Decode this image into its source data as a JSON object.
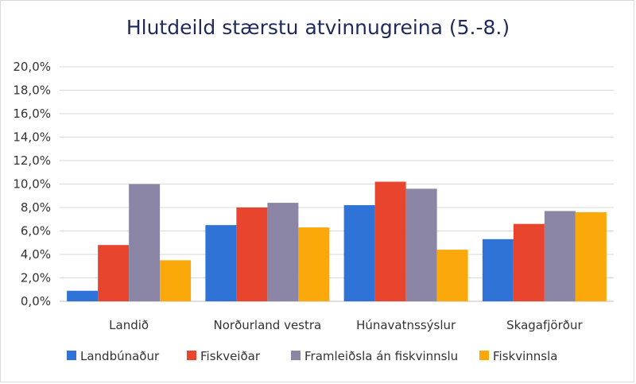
{
  "chart_data": {
    "type": "bar",
    "title": "Hlutdeild stærstu atvinnugreina (5.-8.)",
    "categories": [
      "Landið",
      "Norðurland vestra",
      "Húnavatnssýslur",
      "Skagafjörður"
    ],
    "series": [
      {
        "name": "Landbúnaður",
        "color": "#2f73d6",
        "values": [
          0.9,
          6.5,
          8.2,
          5.3
        ]
      },
      {
        "name": "Fiskveiðar",
        "color": "#e8452f",
        "values": [
          4.8,
          8.0,
          10.2,
          6.6
        ]
      },
      {
        "name": "Framleiðsla án fiskvinnslu",
        "color": "#8c86a6",
        "values": [
          10.0,
          8.4,
          9.6,
          7.7
        ]
      },
      {
        "name": "Fiskvinnsla",
        "color": "#fba80a",
        "values": [
          3.5,
          6.3,
          4.4,
          7.6
        ]
      }
    ],
    "yticks": [
      "0,0%",
      "2,0%",
      "4,0%",
      "6,0%",
      "8,0%",
      "10,0%",
      "12,0%",
      "14,0%",
      "16,0%",
      "18,0%",
      "20,0%"
    ],
    "ylim": [
      0,
      20
    ],
    "ytick_step": 2,
    "grid": true,
    "legend_position": "bottom"
  }
}
